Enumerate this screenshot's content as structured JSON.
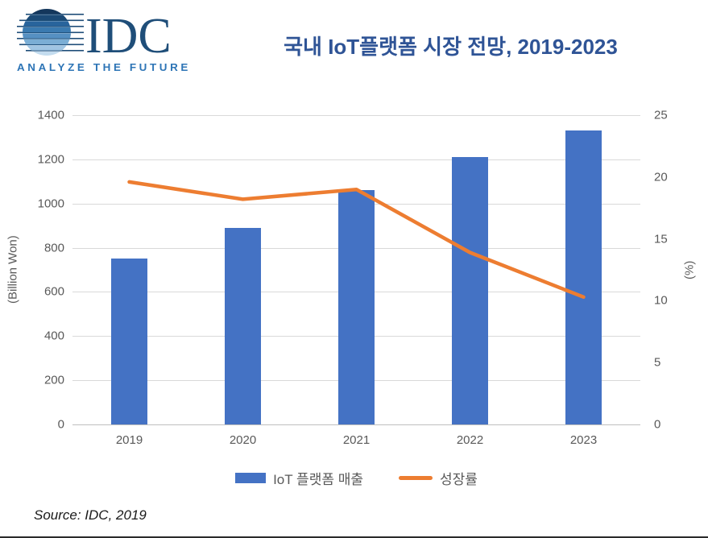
{
  "header": {
    "logo": {
      "text": "IDC",
      "tagline": "ANALYZE THE FUTURE"
    },
    "title": "국내 IoT플랫폼 시장 전망, 2019-2023"
  },
  "chart_data": {
    "type": "bar",
    "subtype": "combo-bar-line-dual-axis",
    "title": "국내 IoT플랫폼 시장 전망, 2019-2023",
    "categories": [
      "2019",
      "2020",
      "2021",
      "2022",
      "2023"
    ],
    "series": [
      {
        "name": "IoT 플랫폼 매출",
        "type": "bar",
        "axis": "left",
        "values": [
          750,
          890,
          1060,
          1210,
          1330
        ],
        "color": "#4472C4"
      },
      {
        "name": "성장률",
        "type": "line",
        "axis": "right",
        "values": [
          19.6,
          18.2,
          19.0,
          13.9,
          10.3
        ],
        "color": "#ED7D31"
      }
    ],
    "left_axis": {
      "label": "(Billion Won)",
      "min": 0,
      "max": 1400,
      "step": 200
    },
    "right_axis": {
      "label": "(%)",
      "min": 0,
      "max": 25,
      "step": 5
    },
    "grid": true,
    "legend_position": "bottom"
  },
  "footer": {
    "source": "Source: IDC, 2019"
  },
  "colors": {
    "title": "#2F5496",
    "axis_text": "#595959",
    "gridline": "#D9D9D9",
    "logo_navy": "#1F4E79",
    "logo_blue": "#2E75B6"
  }
}
